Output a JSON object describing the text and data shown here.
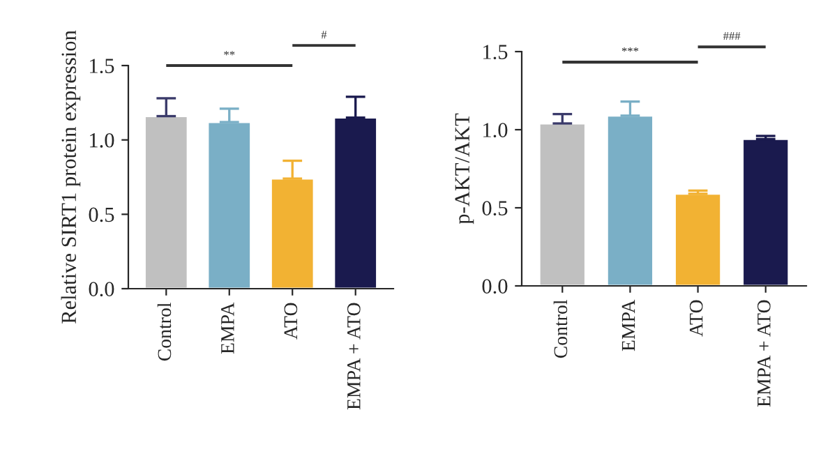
{
  "chart_data": [
    {
      "type": "bar",
      "ylabel": "Relative SIRT1 protein expression",
      "categories": [
        "Control",
        "EMPA",
        "ATO",
        "EMPA + ATO"
      ],
      "values": [
        1.16,
        1.12,
        0.74,
        1.15
      ],
      "colors": [
        "#c0c0c0",
        "#7aafc6",
        "#f2b233",
        "#1a1a4e"
      ],
      "errors": [
        [
          1.16,
          1.28
        ],
        [
          1.12,
          1.21
        ],
        [
          0.74,
          0.86
        ],
        [
          1.15,
          1.29
        ]
      ],
      "ylim": [
        0,
        1.5
      ],
      "yticks": [
        {
          "value": 0,
          "label": "0.0"
        },
        {
          "value": 0.5,
          "label": "0.5"
        },
        {
          "value": 1,
          "label": "1.0"
        },
        {
          "value": 1.5,
          "label": "1.5"
        }
      ],
      "grid": false,
      "annotations": [
        "**",
        "#"
      ]
    },
    {
      "type": "bar",
      "ylabel": "p-AKT/AKT",
      "categories": [
        "Control",
        "EMPA",
        "ATO",
        "EMPA + ATO"
      ],
      "values": [
        1.04,
        1.09,
        0.59,
        0.94
      ],
      "colors": [
        "#c0c0c0",
        "#7aafc6",
        "#f2b233",
        "#1a1a4e"
      ],
      "errors": [
        [
          1.04,
          1.1
        ],
        [
          1.09,
          1.18
        ],
        [
          0.59,
          0.61
        ],
        [
          0.94,
          0.96
        ]
      ],
      "ylim": [
        0,
        1.5
      ],
      "yticks": [
        {
          "value": 0,
          "label": "0.0"
        },
        {
          "value": 0.5,
          "label": "0.5"
        },
        {
          "value": 1,
          "label": "1.0"
        },
        {
          "value": 1.5,
          "label": "1.5"
        }
      ],
      "grid": false,
      "annotations": [
        "***",
        "###"
      ]
    }
  ]
}
